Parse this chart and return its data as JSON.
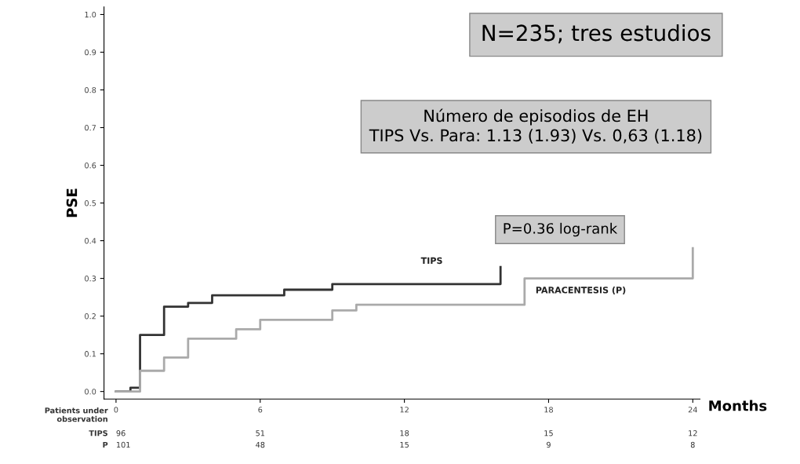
{
  "chart_data": {
    "type": "step",
    "ylabel": "PSE",
    "xlabel": "Months",
    "xlim": [
      -0.5,
      24.3
    ],
    "ylim": [
      -0.02,
      1.02
    ],
    "xticks": [
      0,
      6,
      12,
      18,
      24
    ],
    "yticks": [
      {
        "value": 0,
        "label": "0.0"
      },
      {
        "value": 0.1,
        "label": "0.1"
      },
      {
        "value": 0.2,
        "label": "0.2"
      },
      {
        "value": 0.3,
        "label": "0.3"
      },
      {
        "value": 0.4,
        "label": "0.4"
      },
      {
        "value": 0.5,
        "label": "0.5"
      },
      {
        "value": 0.6,
        "label": "0.6"
      },
      {
        "value": 0.7,
        "label": "0.7"
      },
      {
        "value": 0.8,
        "label": "0.8"
      },
      {
        "value": 0.9,
        "label": "0.9"
      },
      {
        "value": 1.0,
        "label": "1.0"
      }
    ],
    "grid": false,
    "legend": false,
    "series": [
      {
        "name": "TIPS",
        "color": "#333333",
        "x": [
          0,
          0.6,
          1,
          2,
          3,
          4,
          7,
          9,
          16
        ],
        "values": [
          0,
          0.01,
          0.15,
          0.225,
          0.235,
          0.255,
          0.27,
          0.285,
          0.33
        ]
      },
      {
        "name": "PARACENTESIS (P)",
        "color": "#aaaaaa",
        "x": [
          0,
          1,
          2,
          3,
          5,
          6,
          9,
          10,
          17,
          24
        ],
        "values": [
          0,
          0.055,
          0.09,
          0.14,
          0.165,
          0.19,
          0.215,
          0.23,
          0.3,
          0.38
        ]
      }
    ],
    "annotations": [
      "N=235; tres estudios",
      "Número de episodios de EH\nTIPS Vs. Para: 1.13 (1.93) Vs. 0,63 (1.18)",
      "P=0.36 log-rank",
      "Patients under\nobservation",
      "TIPS",
      "96",
      "51",
      "18",
      "15",
      "12",
      "P",
      "101",
      "48",
      "15",
      "9",
      "8"
    ]
  }
}
